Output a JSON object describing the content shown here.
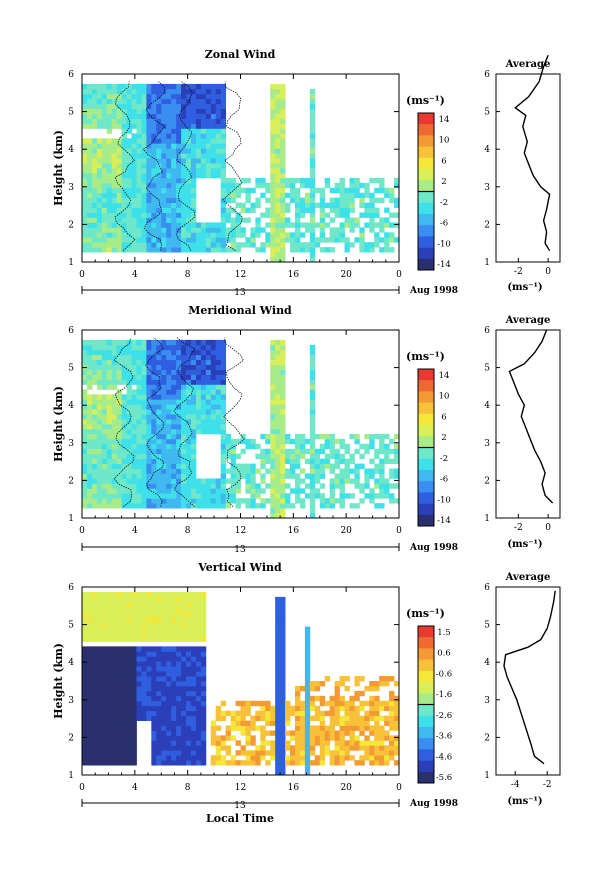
{
  "figure": {
    "xlabel_bottom": "Local Time",
    "date_label": "13",
    "month_label": "Aug 1998",
    "units": "(ms⁻¹)",
    "avg_title": "Average",
    "ylabel": "Height (km)"
  },
  "chart_data": [
    {
      "type": "heatmap",
      "title": "Zonal Wind",
      "xlabel": "",
      "ylabel": "Height (km)",
      "x_ticks": [
        "0",
        "4",
        "8",
        "12",
        "16",
        "20",
        "0"
      ],
      "y_ticks": [
        "1",
        "2",
        "3",
        "4",
        "5",
        "6"
      ],
      "xlim": [
        0,
        24
      ],
      "ylim": [
        1,
        6
      ],
      "colorbar": {
        "label": "(ms⁻¹)",
        "ticks": [
          "14",
          "10",
          "6",
          "2",
          "-2",
          "-6",
          "-10",
          "-14"
        ],
        "range": [
          -14,
          14
        ]
      },
      "average_profile": {
        "title": "Average",
        "xlabel": "(ms⁻¹)",
        "x_ticks": [
          "-2",
          "0"
        ],
        "y_ticks": [
          "1",
          "2",
          "3",
          "4",
          "5",
          "6"
        ],
        "xlim": [
          -3.5,
          0.8
        ],
        "points": [
          [
            0.1,
            1.3
          ],
          [
            -0.2,
            1.5
          ],
          [
            -0.1,
            1.8
          ],
          [
            -0.3,
            2.1
          ],
          [
            -0.1,
            2.4
          ],
          [
            0.1,
            2.8
          ],
          [
            -0.5,
            3.0
          ],
          [
            -1.0,
            3.3
          ],
          [
            -1.3,
            3.6
          ],
          [
            -1.6,
            3.9
          ],
          [
            -1.4,
            4.2
          ],
          [
            -1.7,
            4.6
          ],
          [
            -1.5,
            4.9
          ],
          [
            -2.2,
            5.1
          ],
          [
            -1.3,
            5.4
          ],
          [
            -0.6,
            5.8
          ],
          [
            -0.3,
            6.2
          ],
          [
            0.0,
            6.5
          ]
        ]
      }
    },
    {
      "type": "heatmap",
      "title": "Meridional Wind",
      "xlabel": "",
      "ylabel": "Height (km)",
      "x_ticks": [
        "0",
        "4",
        "8",
        "12",
        "16",
        "20",
        "0"
      ],
      "y_ticks": [
        "1",
        "2",
        "3",
        "4",
        "5",
        "6"
      ],
      "xlim": [
        0,
        24
      ],
      "ylim": [
        1,
        6
      ],
      "colorbar": {
        "label": "(ms⁻¹)",
        "ticks": [
          "14",
          "10",
          "6",
          "2",
          "-2",
          "-6",
          "-10",
          "-14"
        ],
        "range": [
          -14,
          14
        ]
      },
      "average_profile": {
        "title": "Average",
        "xlabel": "(ms⁻¹)",
        "x_ticks": [
          "-2",
          "0"
        ],
        "y_ticks": [
          "1",
          "2",
          "3",
          "4",
          "5",
          "6"
        ],
        "xlim": [
          -3.5,
          0.8
        ],
        "points": [
          [
            0.3,
            1.4
          ],
          [
            -0.2,
            1.6
          ],
          [
            -0.4,
            1.9
          ],
          [
            -0.2,
            2.2
          ],
          [
            -0.5,
            2.5
          ],
          [
            -0.9,
            2.8
          ],
          [
            -1.2,
            3.1
          ],
          [
            -1.5,
            3.4
          ],
          [
            -1.8,
            3.7
          ],
          [
            -1.6,
            4.0
          ],
          [
            -2.0,
            4.3
          ],
          [
            -2.3,
            4.6
          ],
          [
            -2.6,
            4.9
          ],
          [
            -1.6,
            5.1
          ],
          [
            -0.9,
            5.4
          ],
          [
            -0.4,
            5.7
          ],
          [
            -0.1,
            6.0
          ]
        ]
      }
    },
    {
      "type": "heatmap",
      "title": "Vertical Wind",
      "xlabel": "Local Time",
      "ylabel": "Height (km)",
      "x_ticks": [
        "0",
        "4",
        "8",
        "12",
        "16",
        "20",
        "0"
      ],
      "y_ticks": [
        "1",
        "2",
        "3",
        "4",
        "5",
        "6"
      ],
      "xlim": [
        0,
        24
      ],
      "ylim": [
        1,
        6
      ],
      "colorbar": {
        "label": "(ms⁻¹)",
        "ticks": [
          "1.5",
          "0.6",
          "-0.6",
          "-1.6",
          "-2.6",
          "-3.6",
          "-4.6",
          "-5.6"
        ],
        "range": [
          -5.6,
          1.5
        ]
      },
      "average_profile": {
        "title": "Average",
        "xlabel": "(ms⁻¹)",
        "x_ticks": [
          "-4",
          "-2"
        ],
        "y_ticks": [
          "1",
          "2",
          "3",
          "4",
          "5",
          "6"
        ],
        "xlim": [
          -5.2,
          -1.2
        ],
        "points": [
          [
            -2.2,
            1.3
          ],
          [
            -2.8,
            1.5
          ],
          [
            -3.0,
            1.8
          ],
          [
            -3.3,
            2.2
          ],
          [
            -3.6,
            2.6
          ],
          [
            -3.9,
            3.0
          ],
          [
            -4.2,
            3.3
          ],
          [
            -4.5,
            3.6
          ],
          [
            -4.7,
            3.9
          ],
          [
            -4.6,
            4.2
          ],
          [
            -3.2,
            4.4
          ],
          [
            -2.4,
            4.6
          ],
          [
            -2.0,
            4.9
          ],
          [
            -1.8,
            5.2
          ],
          [
            -1.6,
            5.6
          ],
          [
            -1.5,
            5.9
          ]
        ]
      }
    }
  ]
}
